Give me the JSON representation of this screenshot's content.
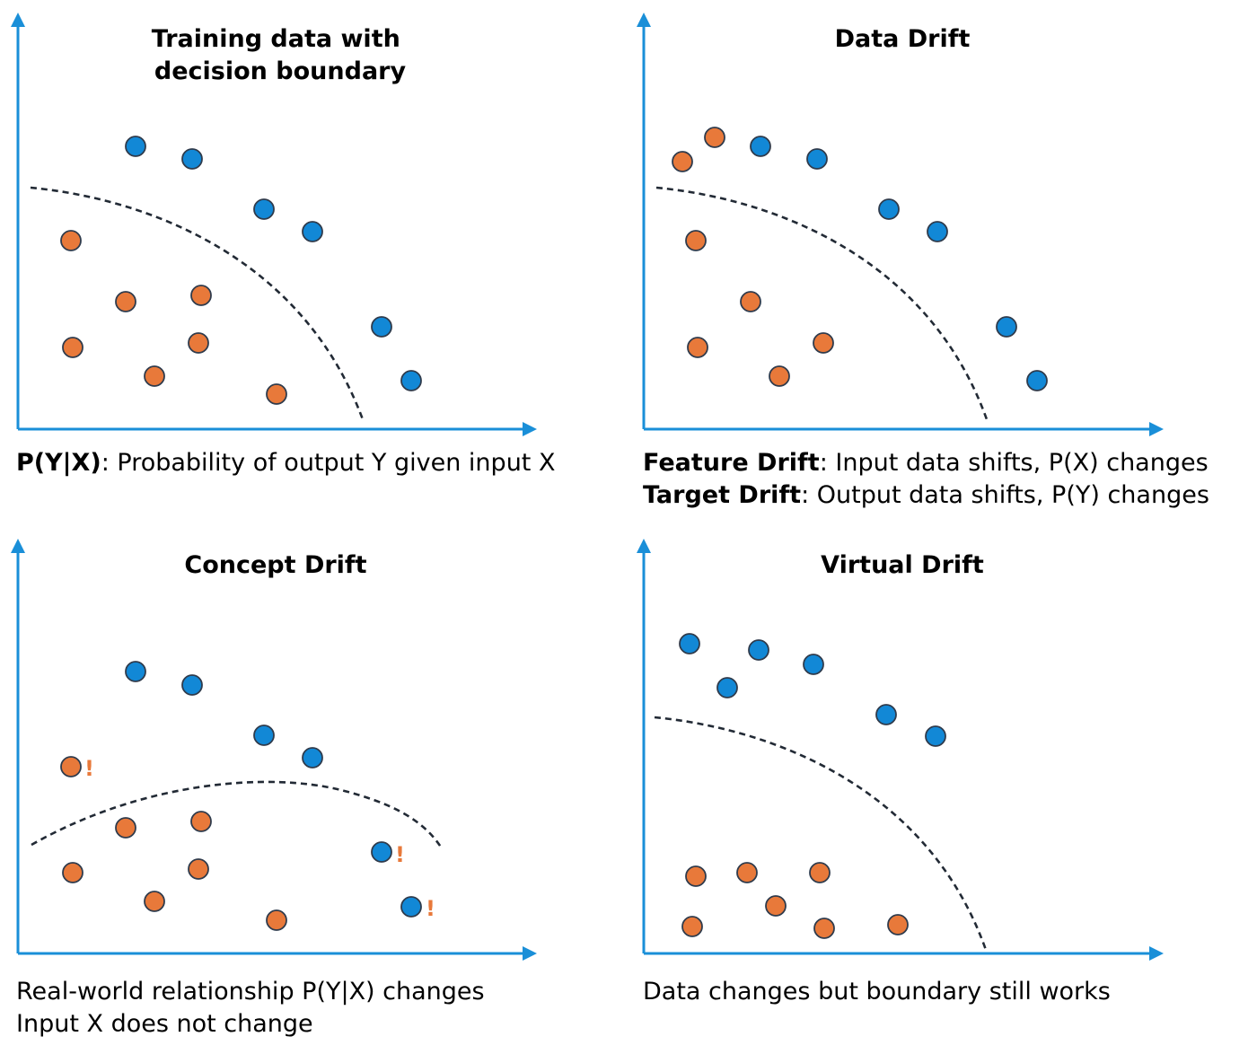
{
  "colors": {
    "axis": "#1a8fd8",
    "class_a": "#1288d6",
    "class_b": "#e8793a",
    "boundary": "#222a35",
    "warning": "#e8793a"
  },
  "panels": [
    {
      "id": "training",
      "title_lines": [
        "Training data with",
        "decision boundary"
      ],
      "caption": [
        [
          {
            "text": "P(Y|X)",
            "bold": true
          },
          {
            "text": ": Probability of output Y given input X",
            "bold": false
          }
        ]
      ]
    },
    {
      "id": "data-drift",
      "title_lines": [
        "Data Drift"
      ],
      "caption": [
        [
          {
            "text": "Feature Drift",
            "bold": true
          },
          {
            "text": ": Input data shifts, P(X) changes",
            "bold": false
          }
        ],
        [
          {
            "text": "Target Drift",
            "bold": true
          },
          {
            "text": ": Output data shifts, P(Y) changes",
            "bold": false
          }
        ]
      ]
    },
    {
      "id": "concept-drift",
      "title_lines": [
        "Concept Drift"
      ],
      "caption": [
        [
          {
            "text": "Real-world relationship P(Y|X) changes",
            "bold": false
          }
        ],
        [
          {
            "text": "Input X does not change",
            "bold": false
          }
        ]
      ]
    },
    {
      "id": "virtual-drift",
      "title_lines": [
        "Virtual Drift"
      ],
      "caption": [
        [
          {
            "text": "Data changes but boundary still works",
            "bold": false
          }
        ]
      ]
    }
  ],
  "warning_mark": "!"
}
